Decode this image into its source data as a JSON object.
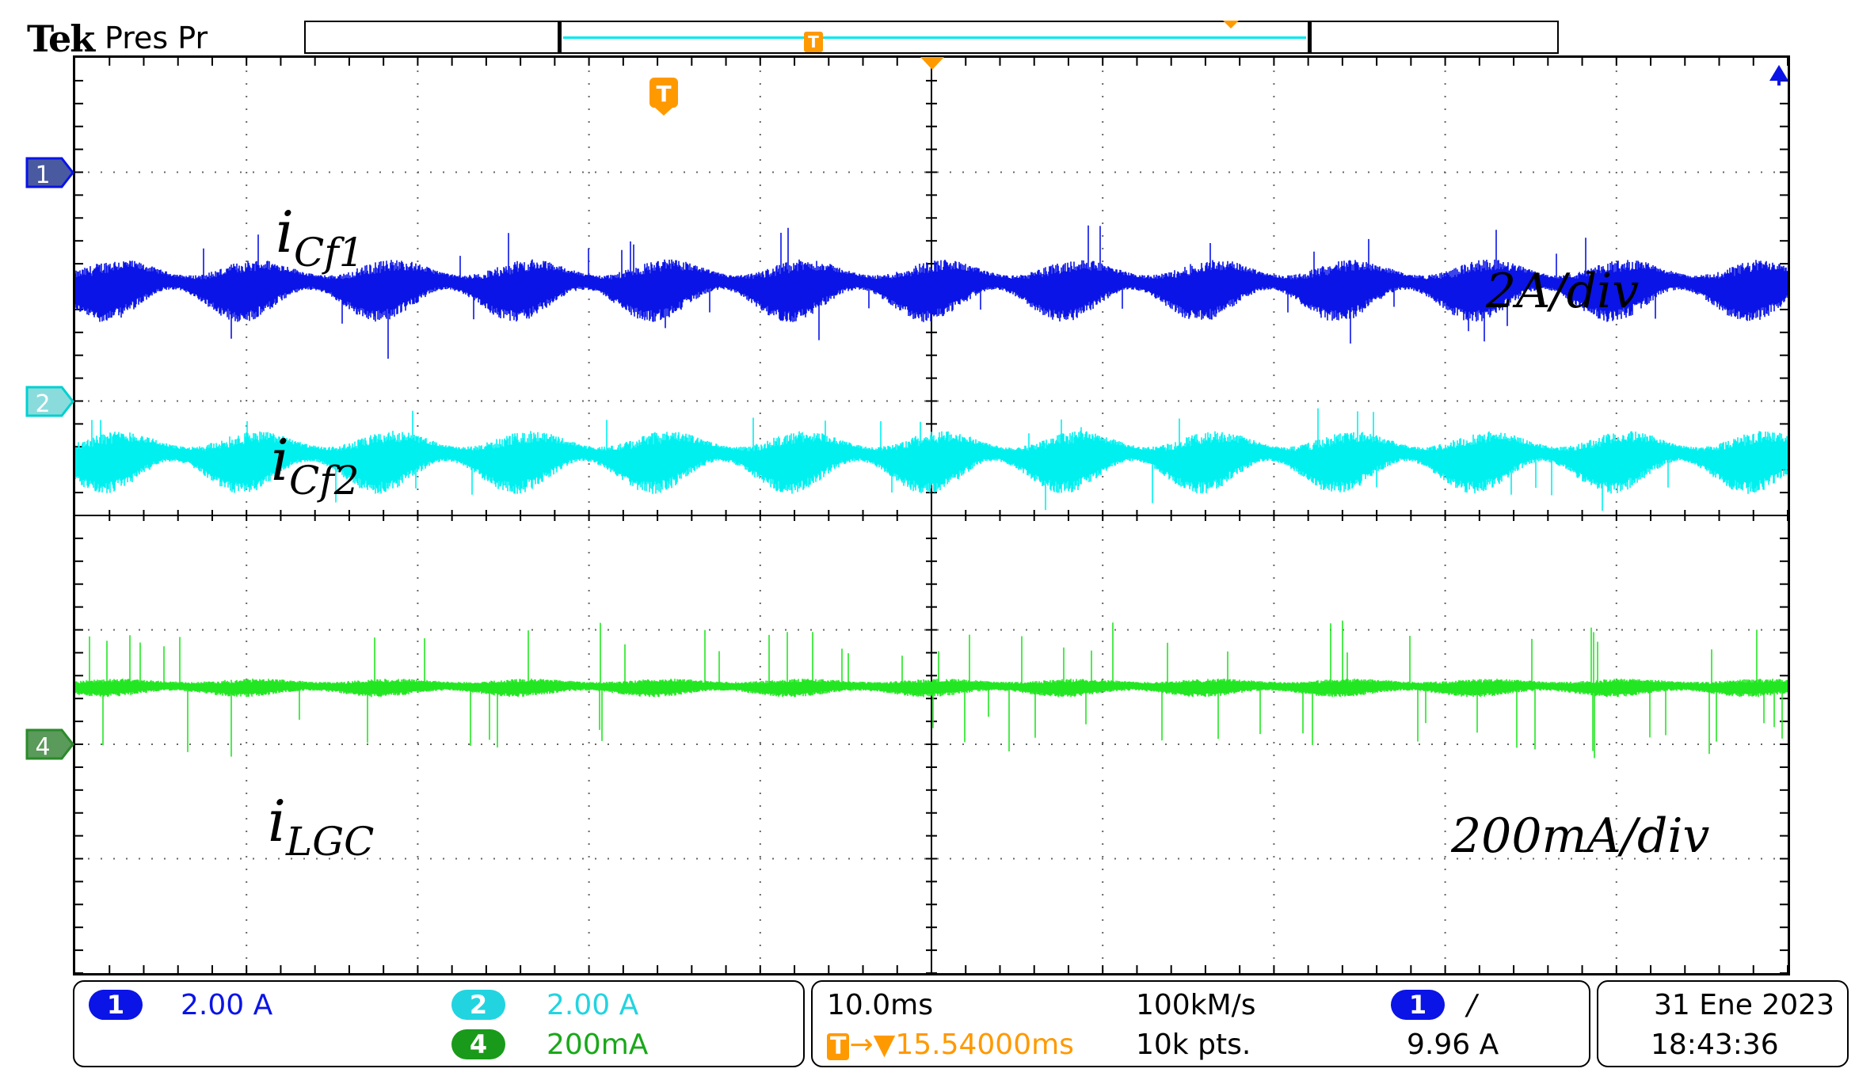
{
  "header": {
    "brand": "Tek",
    "status": "Pres Pr"
  },
  "chart_data": {
    "type": "line",
    "x_divisions": 10,
    "y_divisions": 8,
    "series": [
      {
        "name": "i_Cf1",
        "channel": "1",
        "color": "#0a14e6",
        "baseline_div": -2.0
      },
      {
        "name": "i_Cf2",
        "channel": "2",
        "color": "#00f0f0",
        "baseline_div": -0.5
      },
      {
        "name": "i_LGC",
        "channel": "4",
        "color": "#22e622",
        "baseline_div": 1.5
      }
    ],
    "labels": [
      {
        "id": "cf1",
        "base": "i",
        "sub": "Cf1"
      },
      {
        "id": "cf2",
        "base": "i",
        "sub": "Cf2"
      },
      {
        "id": "lgc",
        "base": "i",
        "sub": "LGC"
      }
    ],
    "scale_labels": [
      "2A/div",
      "200mA/div"
    ]
  },
  "markers": {
    "ch1": "1",
    "ch2": "2",
    "ch4": "4",
    "trigger": "T"
  },
  "readout": {
    "ch1_num": "1",
    "ch1_scale": "2.00 A",
    "ch2_num": "2",
    "ch2_scale": "2.00 A",
    "ch4_num": "4",
    "ch4_scale": "200mA",
    "timebase": "10.0ms",
    "delay_icon": "T",
    "delay": "→▼15.54000ms",
    "sample_rate": "100kM/s",
    "record_length": "10k pts.",
    "trig_ch": "1",
    "trig_slope": "/",
    "trig_level": "9.96 A",
    "date": "31 Ene  2023",
    "time": "18:43:36"
  },
  "colors": {
    "ch1": "#0a14e6",
    "ch2": "#00f0f0",
    "ch4": "#22e622",
    "trigger": "#ff9900",
    "grid": "#666666"
  }
}
